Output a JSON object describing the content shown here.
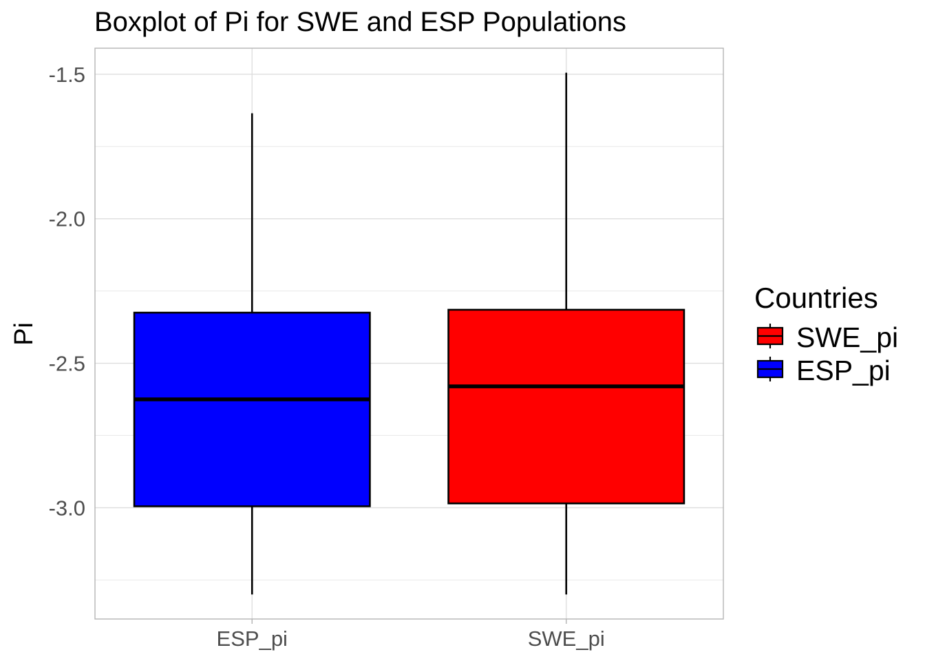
{
  "chart_data": {
    "type": "boxplot",
    "title": "Boxplot of Pi for SWE and ESP Populations",
    "xlabel": "",
    "ylabel": "Pi",
    "ylim": [
      -3.385,
      -1.41
    ],
    "yticks": [
      -3.0,
      -2.5,
      -2.0,
      -1.5
    ],
    "ytick_labels": [
      "-3.0",
      "-2.5",
      "-2.0",
      "-1.5"
    ],
    "grid": true,
    "categories": [
      "ESP_pi",
      "SWE_pi"
    ],
    "series": [
      {
        "name": "ESP_pi",
        "color": "#0000ff",
        "min": -3.3,
        "q1": -2.995,
        "median": -2.625,
        "q3": -2.325,
        "max": -1.635
      },
      {
        "name": "SWE_pi",
        "color": "#ff0000",
        "min": -3.3,
        "q1": -2.985,
        "median": -2.58,
        "q3": -2.315,
        "max": -1.495
      }
    ],
    "legend": {
      "title": "Countries",
      "placement": "right",
      "entries": [
        {
          "label": "SWE_pi",
          "color": "#ff0000"
        },
        {
          "label": "ESP_pi",
          "color": "#0000ff"
        }
      ]
    }
  }
}
